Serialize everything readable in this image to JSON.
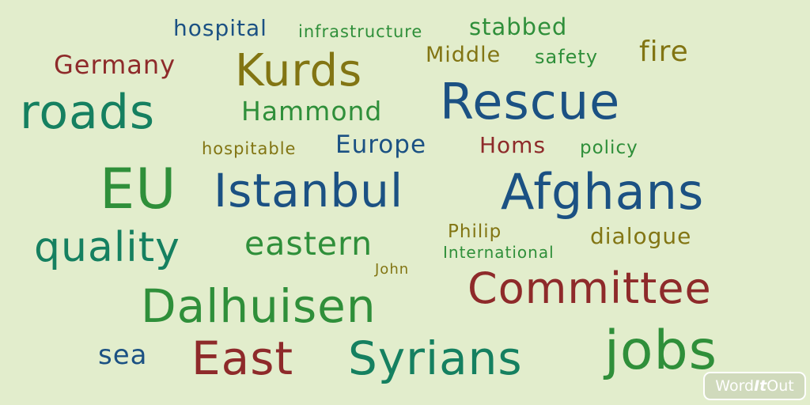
{
  "colors": {
    "background": "#e2edcc",
    "navy": "#1b5183",
    "green": "#2f8f3a",
    "olive": "#827513",
    "dark_red": "#8e2a2a",
    "teal": "#158060"
  },
  "words": [
    {
      "id": "hospital",
      "text": "hospital",
      "color": "navy"
    },
    {
      "id": "infrastructure",
      "text": "infrastructure",
      "color": "green"
    },
    {
      "id": "stabbed",
      "text": "stabbed",
      "color": "green"
    },
    {
      "id": "germany",
      "text": "Germany",
      "color": "dark_red"
    },
    {
      "id": "kurds",
      "text": "Kurds",
      "color": "olive"
    },
    {
      "id": "middle",
      "text": "Middle",
      "color": "olive"
    },
    {
      "id": "safety",
      "text": "safety",
      "color": "green"
    },
    {
      "id": "fire",
      "text": "fire",
      "color": "olive"
    },
    {
      "id": "roads",
      "text": "roads",
      "color": "teal"
    },
    {
      "id": "hammond",
      "text": "Hammond",
      "color": "green"
    },
    {
      "id": "rescue",
      "text": "Rescue",
      "color": "navy"
    },
    {
      "id": "hospitable",
      "text": "hospitable",
      "color": "olive"
    },
    {
      "id": "europe",
      "text": "Europe",
      "color": "navy"
    },
    {
      "id": "homs",
      "text": "Homs",
      "color": "dark_red"
    },
    {
      "id": "policy",
      "text": "policy",
      "color": "green"
    },
    {
      "id": "eu",
      "text": "EU",
      "color": "green"
    },
    {
      "id": "istanbul",
      "text": "Istanbul",
      "color": "navy"
    },
    {
      "id": "afghans",
      "text": "Afghans",
      "color": "navy"
    },
    {
      "id": "quality",
      "text": "quality",
      "color": "teal"
    },
    {
      "id": "eastern",
      "text": "eastern",
      "color": "green"
    },
    {
      "id": "philip",
      "text": "Philip",
      "color": "olive"
    },
    {
      "id": "dialogue",
      "text": "dialogue",
      "color": "olive"
    },
    {
      "id": "international",
      "text": "International",
      "color": "green"
    },
    {
      "id": "john",
      "text": "John",
      "color": "olive"
    },
    {
      "id": "committee",
      "text": "Committee",
      "color": "dark_red"
    },
    {
      "id": "dalhuisen",
      "text": "Dalhuisen",
      "color": "green"
    },
    {
      "id": "sea",
      "text": "sea",
      "color": "navy"
    },
    {
      "id": "east",
      "text": "East",
      "color": "dark_red"
    },
    {
      "id": "syrians",
      "text": "Syrians",
      "color": "teal"
    },
    {
      "id": "jobs",
      "text": "jobs",
      "color": "green"
    }
  ],
  "logo": {
    "part1": "Word",
    "part2": "It",
    "part3": "Out"
  }
}
